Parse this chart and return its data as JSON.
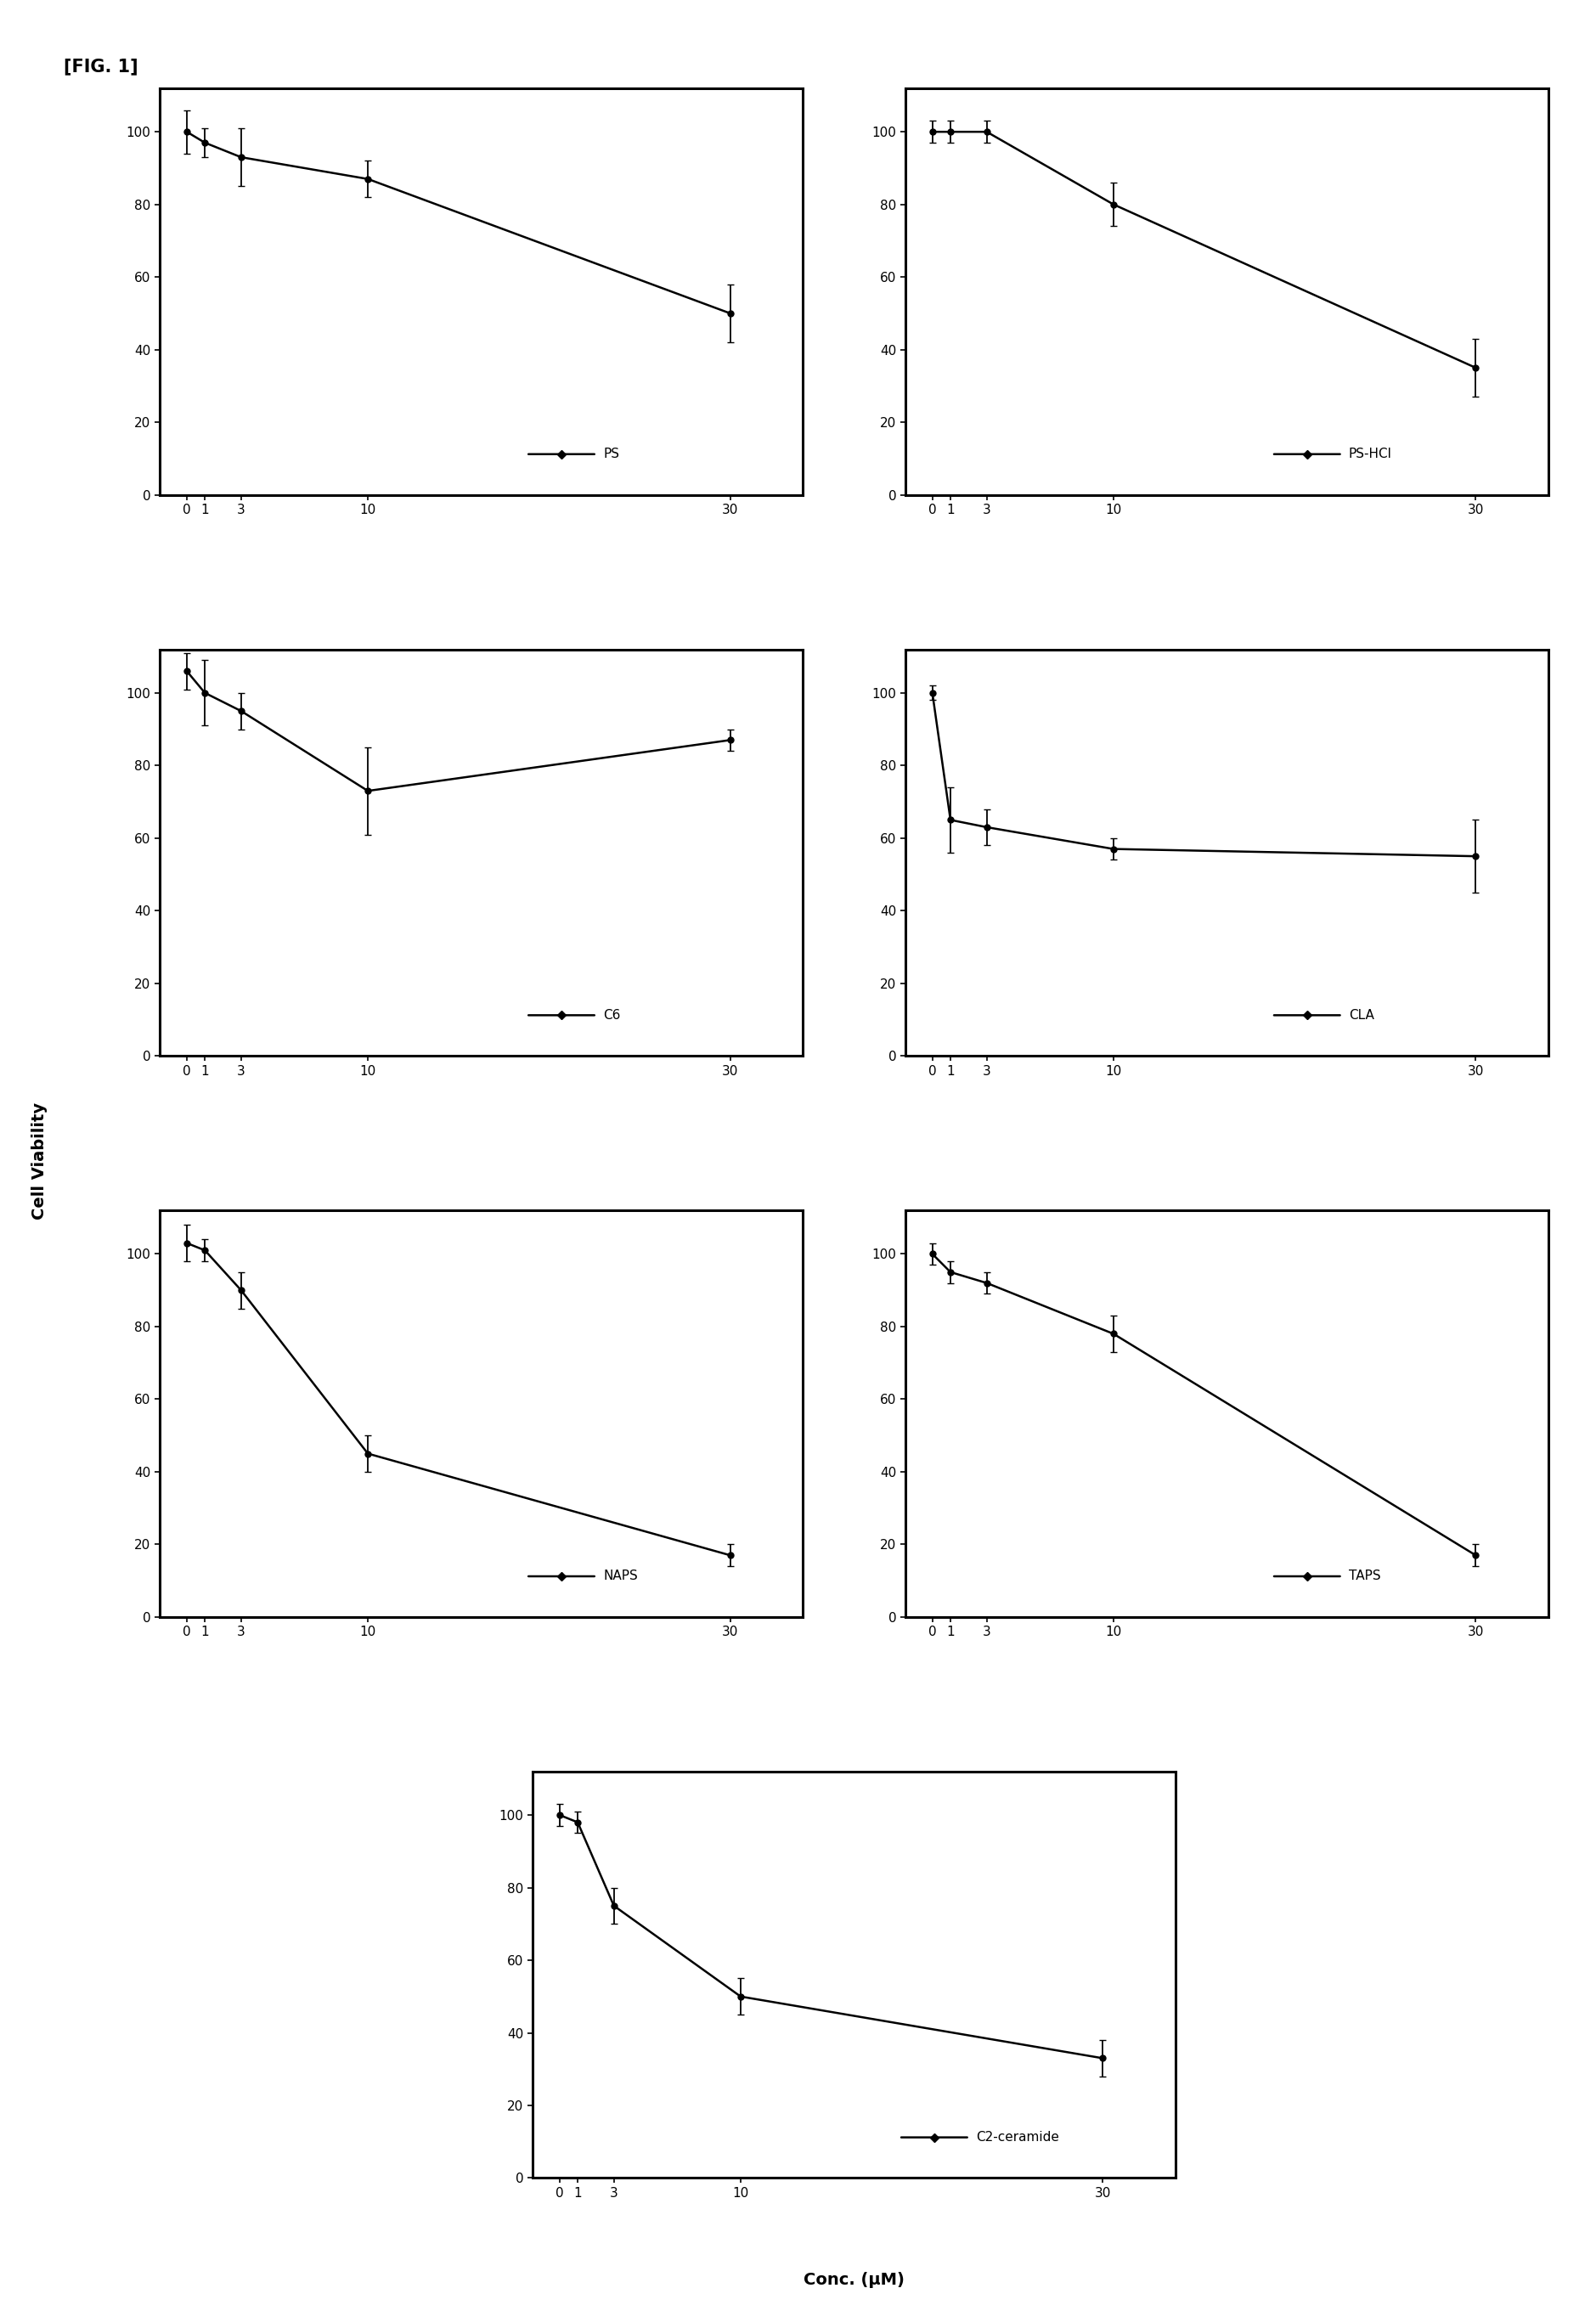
{
  "title": "[FIG. 1]",
  "ylabel": "Cell Viability",
  "xlabel": "Conc. (μM)",
  "x_ticks": [
    0,
    1,
    3,
    10,
    30
  ],
  "x_tick_labels": [
    "0",
    "1",
    "3",
    "10",
    "30"
  ],
  "xlim": [
    -1.5,
    34
  ],
  "ylim": [
    0,
    112
  ],
  "y_ticks": [
    0,
    20,
    40,
    60,
    80,
    100
  ],
  "plots": [
    {
      "label": "PS",
      "x": [
        0,
        1,
        3,
        10,
        30
      ],
      "y": [
        100,
        97,
        93,
        87,
        50
      ],
      "yerr": [
        6,
        4,
        8,
        5,
        8
      ],
      "row": 0,
      "col": 0
    },
    {
      "label": "PS-HCl",
      "x": [
        0,
        1,
        3,
        10,
        30
      ],
      "y": [
        100,
        100,
        100,
        80,
        35
      ],
      "yerr": [
        3,
        3,
        3,
        6,
        8
      ],
      "row": 0,
      "col": 1
    },
    {
      "label": "C6",
      "x": [
        0,
        1,
        3,
        10,
        30
      ],
      "y": [
        106,
        100,
        95,
        73,
        87
      ],
      "yerr": [
        5,
        9,
        5,
        12,
        3
      ],
      "row": 1,
      "col": 0
    },
    {
      "label": "CLA",
      "x": [
        0,
        1,
        3,
        10,
        30
      ],
      "y": [
        100,
        65,
        63,
        57,
        55
      ],
      "yerr": [
        2,
        9,
        5,
        3,
        10
      ],
      "row": 1,
      "col": 1
    },
    {
      "label": "NAPS",
      "x": [
        0,
        1,
        3,
        10,
        30
      ],
      "y": [
        103,
        101,
        90,
        45,
        17
      ],
      "yerr": [
        5,
        3,
        5,
        5,
        3
      ],
      "row": 2,
      "col": 0
    },
    {
      "label": "TAPS",
      "x": [
        0,
        1,
        3,
        10,
        30
      ],
      "y": [
        100,
        95,
        92,
        78,
        17
      ],
      "yerr": [
        3,
        3,
        3,
        5,
        3
      ],
      "row": 2,
      "col": 1
    },
    {
      "label": "C2-ceramide",
      "x": [
        0,
        1,
        3,
        10,
        30
      ],
      "y": [
        100,
        98,
        75,
        50,
        33
      ],
      "yerr": [
        3,
        3,
        5,
        5,
        5
      ],
      "row": 3,
      "col": 0
    }
  ],
  "line_color": "black",
  "marker": "o",
  "markersize": 5,
  "linewidth": 1.8,
  "capsize": 3,
  "elinewidth": 1.3,
  "figure_bg": "white",
  "axes_bg": "white",
  "spine_lw": 2.2,
  "tick_fontsize": 11,
  "label_fontsize": 14,
  "title_fontsize": 15,
  "legend_fontsize": 11
}
